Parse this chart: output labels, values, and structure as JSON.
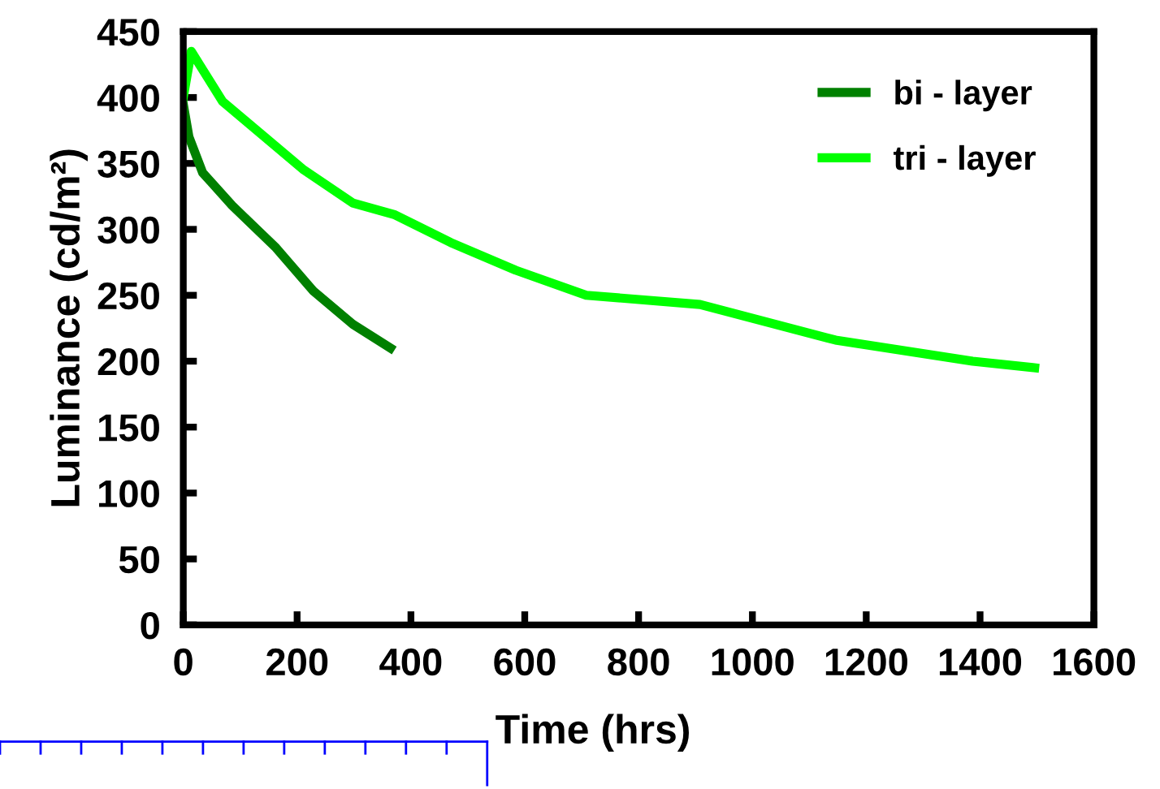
{
  "chart_data": {
    "type": "line",
    "xlabel": "Time (hrs)",
    "ylabel": "Luminance (cd/m²)",
    "xlim": [
      0,
      1600
    ],
    "xticks": [
      0,
      200,
      400,
      600,
      800,
      1000,
      1200,
      1400,
      1600
    ],
    "ylim": [
      0,
      450
    ],
    "yticks": [
      0,
      50,
      100,
      150,
      200,
      250,
      300,
      350,
      400,
      450
    ],
    "grid": false,
    "legend": "top right",
    "marker": "none",
    "line_style": "solid",
    "series": [
      {
        "name": "bi - layer",
        "color": "#008000",
        "x": [
          0,
          10,
          34,
          86,
          163,
          229,
          298,
          364
        ],
        "values": [
          395,
          370,
          343,
          318,
          286,
          253,
          228,
          210
        ]
      },
      {
        "name": "tri - layer",
        "color": "#00ff00",
        "x": [
          0,
          14,
          69,
          135,
          212,
          298,
          372,
          470,
          584,
          708,
          908,
          1146,
          1387,
          1496
        ],
        "values": [
          400,
          435,
          397,
          373,
          345,
          320,
          311,
          290,
          269,
          250,
          243,
          216,
          200,
          195
        ]
      }
    ]
  }
}
